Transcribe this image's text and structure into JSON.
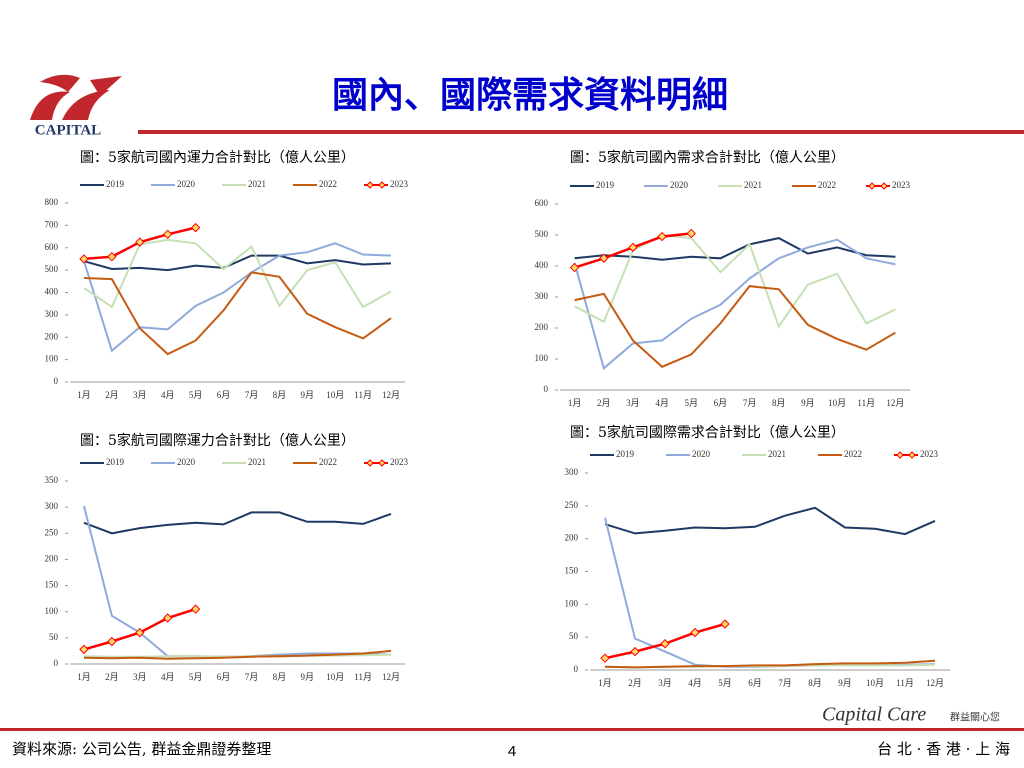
{
  "header": {
    "title": "國內、國際需求資料明細",
    "logo": "CAPITAL"
  },
  "footer": {
    "source": "資料來源: 公司公告, 群益金鼎證券整理",
    "page": "4",
    "brand": "Capital Care",
    "brand_cn": "群益關心您",
    "cities": "台 北 · 香 港 · 上 海"
  },
  "chart_data": [
    {
      "type": "line",
      "title": "圖：5家航司國內運力合計對比（億人公里）",
      "categories": [
        "1月",
        "2月",
        "3月",
        "4月",
        "5月",
        "6月",
        "7月",
        "8月",
        "9月",
        "10月",
        "11月",
        "12月"
      ],
      "ylim": [
        0,
        800
      ],
      "yticks": [
        0,
        100,
        200,
        300,
        400,
        500,
        600,
        700,
        800
      ],
      "series": [
        {
          "name": "2019",
          "color": "#1f3864",
          "values": [
            540,
            505,
            510,
            500,
            520,
            510,
            565,
            565,
            530,
            545,
            525,
            530
          ]
        },
        {
          "name": "2020",
          "color": "#8faadc",
          "values": [
            540,
            140,
            245,
            235,
            340,
            400,
            490,
            565,
            580,
            620,
            570,
            565
          ]
        },
        {
          "name": "2021",
          "color": "#c5e0b4",
          "values": [
            420,
            335,
            615,
            635,
            620,
            505,
            605,
            340,
            500,
            535,
            335,
            405
          ]
        },
        {
          "name": "2022",
          "color": "#c55a11",
          "values": [
            465,
            460,
            240,
            125,
            185,
            320,
            490,
            470,
            305,
            245,
            195,
            285
          ]
        },
        {
          "name": "2023",
          "color": "#ff0000",
          "marker": true,
          "values": [
            550,
            560,
            625,
            660,
            690,
            null,
            null,
            null,
            null,
            null,
            null,
            null
          ]
        }
      ]
    },
    {
      "type": "line",
      "title": "圖：5家航司國內需求合計對比（億人公里）",
      "categories": [
        "1月",
        "2月",
        "3月",
        "4月",
        "5月",
        "6月",
        "7月",
        "8月",
        "9月",
        "10月",
        "11月",
        "12月"
      ],
      "ylim": [
        0,
        600
      ],
      "yticks": [
        0,
        100,
        200,
        300,
        400,
        500,
        600
      ],
      "series": [
        {
          "name": "2019",
          "color": "#1f3864",
          "values": [
            425,
            435,
            430,
            420,
            430,
            425,
            470,
            490,
            440,
            460,
            435,
            430
          ]
        },
        {
          "name": "2020",
          "color": "#8faadc",
          "values": [
            410,
            70,
            150,
            160,
            230,
            275,
            360,
            425,
            460,
            485,
            425,
            405
          ]
        },
        {
          "name": "2021",
          "color": "#c5e0b4",
          "values": [
            270,
            220,
            450,
            500,
            490,
            380,
            470,
            205,
            340,
            375,
            215,
            260
          ]
        },
        {
          "name": "2022",
          "color": "#c55a11",
          "values": [
            290,
            310,
            160,
            75,
            115,
            215,
            335,
            325,
            210,
            165,
            130,
            185
          ]
        },
        {
          "name": "2023",
          "color": "#ff0000",
          "marker": true,
          "values": [
            395,
            425,
            460,
            495,
            505,
            null,
            null,
            null,
            null,
            null,
            null,
            null
          ]
        }
      ]
    },
    {
      "type": "line",
      "title": "圖：5家航司國際運力合計對比（億人公里）",
      "categories": [
        "1月",
        "2月",
        "3月",
        "4月",
        "5月",
        "6月",
        "7月",
        "8月",
        "9月",
        "10月",
        "11月",
        "12月"
      ],
      "ylim": [
        0,
        350
      ],
      "yticks": [
        0,
        50,
        100,
        150,
        200,
        250,
        300,
        350
      ],
      "series": [
        {
          "name": "2019",
          "color": "#1f3864",
          "values": [
            270,
            250,
            260,
            266,
            270,
            267,
            290,
            290,
            272,
            272,
            268,
            287
          ]
        },
        {
          "name": "2020",
          "color": "#8faadc",
          "values": [
            302,
            92,
            60,
            15,
            15,
            14,
            15,
            18,
            20,
            20,
            20,
            18
          ]
        },
        {
          "name": "2021",
          "color": "#c5e0b4",
          "values": [
            15,
            14,
            14,
            15,
            15,
            14,
            15,
            15,
            16,
            16,
            17,
            18
          ]
        },
        {
          "name": "2022",
          "color": "#c55a11",
          "values": [
            12,
            11,
            12,
            10,
            11,
            12,
            14,
            15,
            16,
            18,
            20,
            25
          ]
        },
        {
          "name": "2023",
          "color": "#ff0000",
          "marker": true,
          "values": [
            28,
            43,
            60,
            88,
            105,
            null,
            null,
            null,
            null,
            null,
            null,
            null
          ]
        }
      ]
    },
    {
      "type": "line",
      "title": "圖：5家航司國際需求合計對比（億人公里）",
      "categories": [
        "1月",
        "2月",
        "3月",
        "4月",
        "5月",
        "6月",
        "7月",
        "8月",
        "9月",
        "10月",
        "11月",
        "12月"
      ],
      "ylim": [
        0,
        300
      ],
      "yticks": [
        0,
        50,
        100,
        150,
        200,
        250,
        300
      ],
      "series": [
        {
          "name": "2019",
          "color": "#1f3864",
          "values": [
            222,
            208,
            212,
            217,
            216,
            218,
            235,
            247,
            217,
            215,
            207,
            227
          ]
        },
        {
          "name": "2020",
          "color": "#8faadc",
          "values": [
            232,
            48,
            28,
            8,
            5,
            5,
            6,
            7,
            8,
            8,
            8,
            9
          ]
        },
        {
          "name": "2021",
          "color": "#c5e0b4",
          "values": [
            5,
            4,
            5,
            5,
            6,
            6,
            6,
            7,
            7,
            7,
            7,
            8
          ]
        },
        {
          "name": "2022",
          "color": "#c55a11",
          "values": [
            5,
            4,
            5,
            6,
            6,
            7,
            7,
            9,
            10,
            10,
            11,
            14
          ]
        },
        {
          "name": "2023",
          "color": "#ff0000",
          "marker": true,
          "values": [
            18,
            28,
            40,
            57,
            70,
            null,
            null,
            null,
            null,
            null,
            null,
            null
          ]
        }
      ]
    }
  ]
}
